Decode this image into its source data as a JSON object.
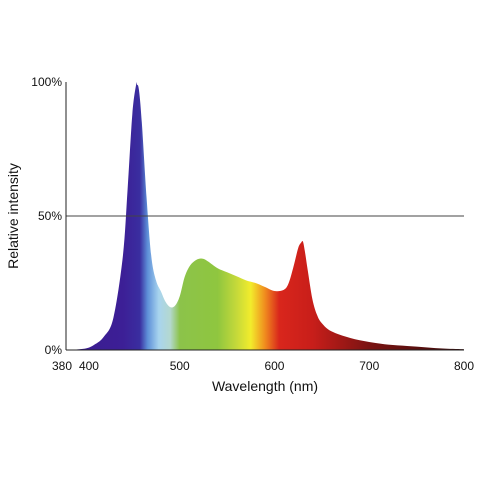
{
  "chart_data": {
    "type": "area",
    "title": "",
    "xlabel": "Wavelength (nm)",
    "ylabel": "Relative intensity",
    "xlim": [
      380,
      800
    ],
    "ylim": [
      0,
      100
    ],
    "x_ticks": [
      380,
      400,
      500,
      600,
      700,
      800
    ],
    "x_tick_labels": [
      "380",
      "400",
      "500",
      "600",
      "700",
      "800"
    ],
    "y_ticks": [
      0,
      50,
      100
    ],
    "y_tick_labels": [
      "0%",
      "50%",
      "100%"
    ],
    "reference_line": {
      "y": 50
    },
    "grid": false,
    "legend": "none",
    "series": [
      {
        "x": [
          380,
          400,
          410,
          420,
          430,
          440,
          445,
          450,
          454,
          455,
          457,
          460,
          465,
          470,
          475,
          480,
          485,
          490,
          495,
          500,
          505,
          510,
          515,
          520,
          525,
          530,
          540,
          550,
          560,
          570,
          580,
          590,
          600,
          610,
          615,
          620,
          625,
          628,
          630,
          632,
          635,
          640,
          645,
          650,
          660,
          680,
          700,
          720,
          740,
          760,
          780,
          800
        ],
        "y": [
          0,
          0.5,
          2,
          5,
          12,
          35,
          60,
          88,
          99,
          99,
          97,
          85,
          57,
          35,
          26,
          22,
          18,
          16,
          16.5,
          20,
          27,
          31,
          33,
          34,
          34,
          33,
          30.5,
          29,
          27.5,
          26,
          25,
          23.5,
          22,
          22.5,
          25,
          31,
          38,
          40,
          40.5,
          37,
          30,
          19,
          13,
          10,
          7,
          4.5,
          3,
          2,
          1.5,
          1,
          0.5,
          0.3
        ]
      }
    ],
    "gradient_colors": [
      {
        "nm": 380,
        "color": "#3a1b8e"
      },
      {
        "nm": 440,
        "color": "#3c1f96"
      },
      {
        "nm": 458,
        "color": "#3a2ea0"
      },
      {
        "nm": 466,
        "color": "#5d8fd8"
      },
      {
        "nm": 478,
        "color": "#a8d4ee"
      },
      {
        "nm": 490,
        "color": "#b4d8cf"
      },
      {
        "nm": 500,
        "color": "#8cc34a"
      },
      {
        "nm": 540,
        "color": "#8fc63f"
      },
      {
        "nm": 560,
        "color": "#c5d93a"
      },
      {
        "nm": 575,
        "color": "#f2ec2c"
      },
      {
        "nm": 590,
        "color": "#f08c1e"
      },
      {
        "nm": 605,
        "color": "#d9261c"
      },
      {
        "nm": 640,
        "color": "#c81e1a"
      },
      {
        "nm": 700,
        "color": "#7a1312"
      },
      {
        "nm": 800,
        "color": "#3a0c0c"
      }
    ]
  }
}
